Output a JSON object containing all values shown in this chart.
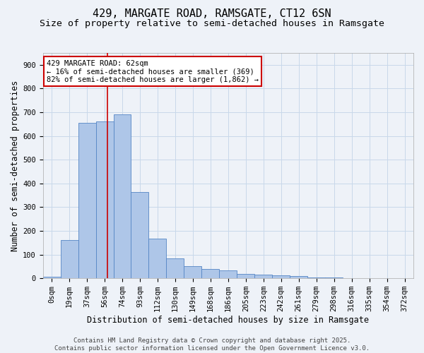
{
  "title1": "429, MARGATE ROAD, RAMSGATE, CT12 6SN",
  "title2": "Size of property relative to semi-detached houses in Ramsgate",
  "xlabel": "Distribution of semi-detached houses by size in Ramsgate",
  "ylabel": "Number of semi-detached properties",
  "bar_labels": [
    "0sqm",
    "19sqm",
    "37sqm",
    "56sqm",
    "74sqm",
    "93sqm",
    "112sqm",
    "130sqm",
    "149sqm",
    "168sqm",
    "186sqm",
    "205sqm",
    "223sqm",
    "242sqm",
    "261sqm",
    "279sqm",
    "298sqm",
    "316sqm",
    "335sqm",
    "354sqm",
    "372sqm"
  ],
  "bar_values": [
    8,
    160,
    655,
    660,
    690,
    365,
    168,
    85,
    50,
    40,
    32,
    18,
    15,
    12,
    9,
    5,
    3,
    2,
    1,
    0,
    0
  ],
  "bar_color": "#aec6e8",
  "bar_edge_color": "#5585c5",
  "grid_color": "#c8d8ea",
  "background_color": "#eef2f8",
  "vline_x": 3.17,
  "vline_color": "#cc0000",
  "annotation_text": "429 MARGATE ROAD: 62sqm\n← 16% of semi-detached houses are smaller (369)\n82% of semi-detached houses are larger (1,862) →",
  "annotation_box_color": "#ffffff",
  "annotation_box_edge": "#cc0000",
  "footnote": "Contains HM Land Registry data © Crown copyright and database right 2025.\nContains public sector information licensed under the Open Government Licence v3.0.",
  "ylim": [
    0,
    950
  ],
  "yticks": [
    0,
    100,
    200,
    300,
    400,
    500,
    600,
    700,
    800,
    900
  ],
  "title_fontsize": 11,
  "subtitle_fontsize": 9.5,
  "axis_label_fontsize": 8.5,
  "tick_fontsize": 7.5,
  "annotation_fontsize": 7.5,
  "footnote_fontsize": 6.5
}
